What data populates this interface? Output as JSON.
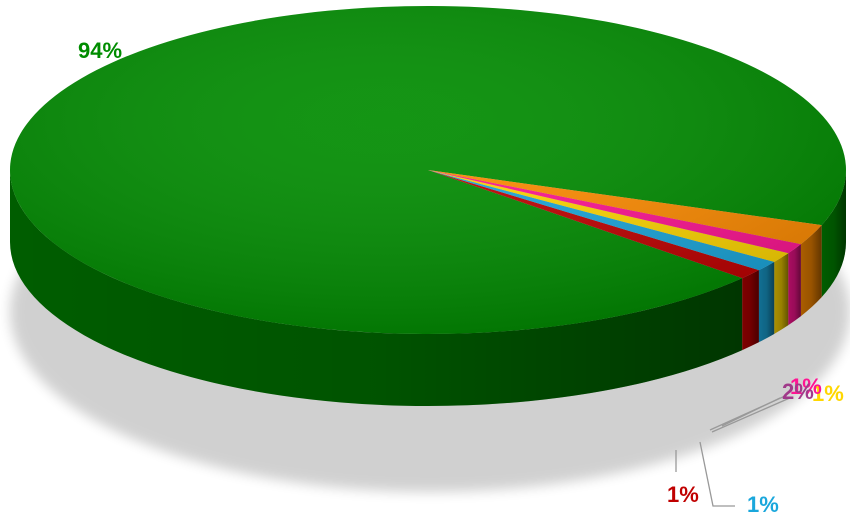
{
  "chart_data": {
    "type": "pie",
    "title": "",
    "legend": "none",
    "three_d": true,
    "slices": [
      {
        "label": "94%",
        "value": 94,
        "color": "#008c00"
      },
      {
        "label": "1%",
        "value": 1,
        "color": "#c00000"
      },
      {
        "label": "1%",
        "value": 1,
        "color": "#1aa7dc"
      },
      {
        "label": "1%",
        "value": 1,
        "color": "#ffd700"
      },
      {
        "label": "1%",
        "value": 1,
        "color": "#ff1493"
      },
      {
        "label": "2%",
        "value": 2,
        "color": "#ff8c00"
      }
    ]
  }
}
